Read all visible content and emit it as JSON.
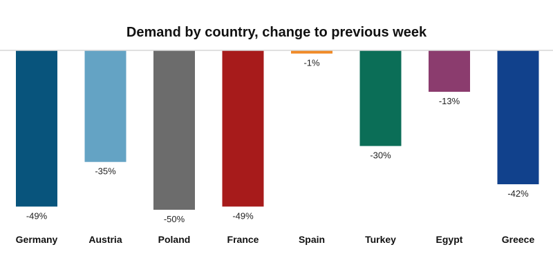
{
  "chart_data": {
    "type": "bar",
    "title": "Demand by country, change to previous week",
    "categories": [
      "Germany",
      "Austria",
      "Poland",
      "France",
      "Spain",
      "Turkey",
      "Egypt",
      "Greece"
    ],
    "values": [
      -49,
      -35,
      -50,
      -49,
      -1,
      -30,
      -13,
      -42
    ],
    "value_labels": [
      "-49%",
      "-35%",
      "-50%",
      "-49%",
      "-1%",
      "-30%",
      "-13%",
      "-42%"
    ],
    "colors": [
      "#08547c",
      "#64a3c4",
      "#6c6c6c",
      "#a71b1b",
      "#f08a27",
      "#0b6e57",
      "#8b3c6e",
      "#11418c"
    ],
    "ylim": [
      -50,
      0
    ],
    "xlabel": "",
    "ylabel": "",
    "grid": false,
    "legend": "none"
  }
}
